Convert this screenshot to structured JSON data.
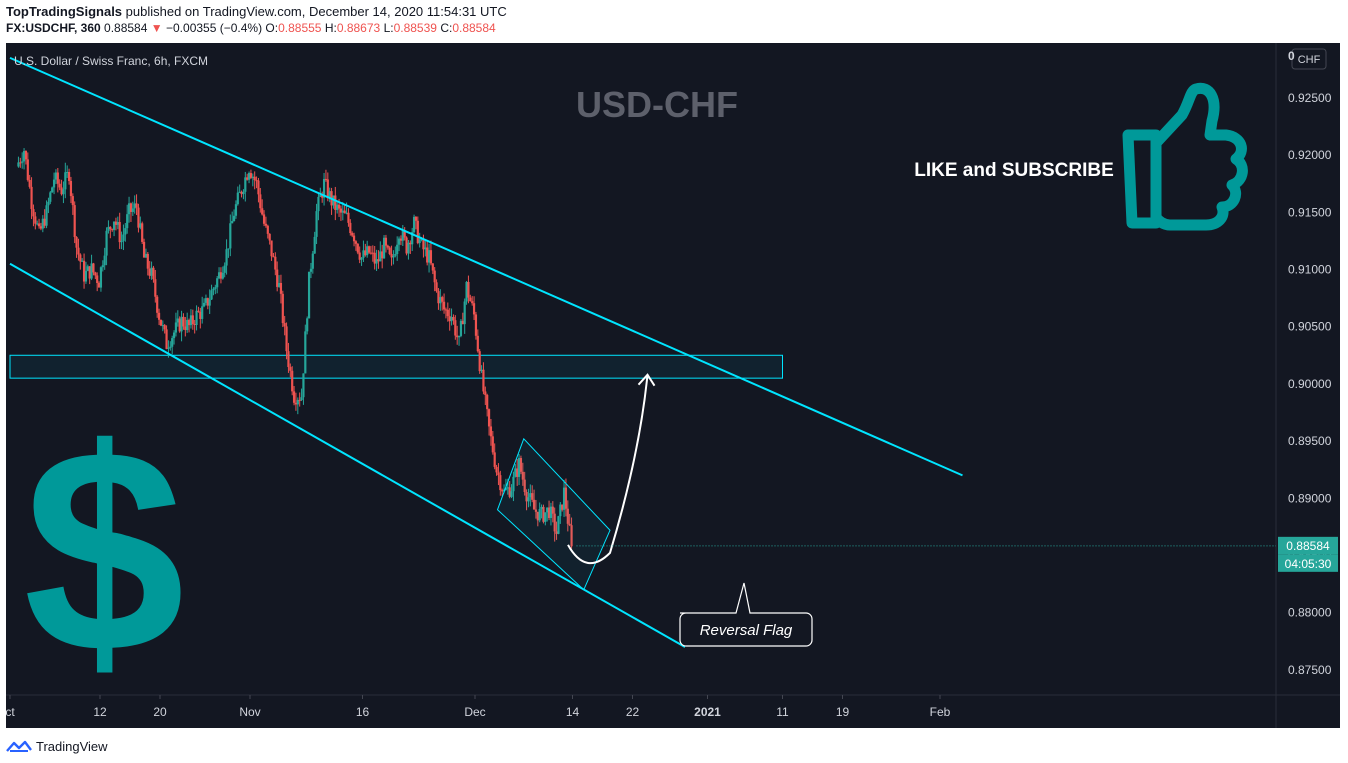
{
  "header": {
    "author": "TopTradingSignals",
    "published_text": " published on TradingView.com, December 14, 2020 11:54:31 UTC",
    "symbol": "FX:USDCHF, 360",
    "last": "0.88584",
    "arrow": "▼",
    "change": "−0.00355 (−0.4%)",
    "o_label": "O:",
    "o_value": "0.88555",
    "h_label": "H:",
    "h_value": "0.88673",
    "l_label": "L:",
    "l_value": "0.88539",
    "c_label": "C:",
    "c_value": "0.88584"
  },
  "chart_legend": "U.S. Dollar / Swiss Franc, 6h, FXCM",
  "watermark": "USD-CHF",
  "like_text": "LIKE and SUBSCRIBE",
  "currency_badge": "CHF",
  "top_axis_label": "0",
  "price_label": "0.88584",
  "countdown_label": "04:05:30",
  "reversal_label": "Reversal Flag",
  "footer_brand": "TradingView",
  "colors": {
    "background": "#131722",
    "up": "#26a69a",
    "down": "#ef5350",
    "trendline": "#00e5ff",
    "teal_art": "#009999",
    "axis_text": "#d1d4dc",
    "last_price_bg": "#26a69a"
  },
  "chart_data": {
    "type": "candlestick",
    "title": "U.S. Dollar / Swiss Franc, 6h, FXCM",
    "ylim": [
      0.8728,
      0.9298
    ],
    "y_ticks": [
      "0.92500",
      "0.92000",
      "0.91500",
      "0.91000",
      "0.90500",
      "0.90000",
      "0.89500",
      "0.89000",
      "0.88500",
      "0.88000",
      "0.87500"
    ],
    "x_ticks": [
      {
        "label": "ct",
        "day": -1
      },
      {
        "label": "12",
        "day": 11
      },
      {
        "label": "20",
        "day": 19
      },
      {
        "label": "Nov",
        "day": 31
      },
      {
        "label": "16",
        "day": 46
      },
      {
        "label": "Dec",
        "day": 61
      },
      {
        "label": "14",
        "day": 74
      },
      {
        "label": "22",
        "day": 82
      },
      {
        "label": "2021",
        "day": 92
      },
      {
        "label": "11",
        "day": 102
      },
      {
        "label": "19",
        "day": 110
      },
      {
        "label": "Feb",
        "day": 123
      }
    ],
    "anchors": [
      {
        "day": 0,
        "price": 0.919
      },
      {
        "day": 1,
        "price": 0.9205
      },
      {
        "day": 2,
        "price": 0.916
      },
      {
        "day": 3,
        "price": 0.913
      },
      {
        "day": 4,
        "price": 0.915
      },
      {
        "day": 5,
        "price": 0.918
      },
      {
        "day": 6,
        "price": 0.917
      },
      {
        "day": 7,
        "price": 0.9185
      },
      {
        "day": 8,
        "price": 0.912
      },
      {
        "day": 9,
        "price": 0.9095
      },
      {
        "day": 10,
        "price": 0.91
      },
      {
        "day": 11,
        "price": 0.909
      },
      {
        "day": 12,
        "price": 0.913
      },
      {
        "day": 13,
        "price": 0.9145
      },
      {
        "day": 14,
        "price": 0.9125
      },
      {
        "day": 15,
        "price": 0.915
      },
      {
        "day": 16,
        "price": 0.9155
      },
      {
        "day": 17,
        "price": 0.911
      },
      {
        "day": 18,
        "price": 0.9095
      },
      {
        "day": 19,
        "price": 0.906
      },
      {
        "day": 20,
        "price": 0.9035
      },
      {
        "day": 21,
        "price": 0.9045
      },
      {
        "day": 22,
        "price": 0.9055
      },
      {
        "day": 23,
        "price": 0.905
      },
      {
        "day": 24,
        "price": 0.906
      },
      {
        "day": 25,
        "price": 0.9065
      },
      {
        "day": 26,
        "price": 0.908
      },
      {
        "day": 27,
        "price": 0.9095
      },
      {
        "day": 28,
        "price": 0.9115
      },
      {
        "day": 29,
        "price": 0.915
      },
      {
        "day": 30,
        "price": 0.917
      },
      {
        "day": 31,
        "price": 0.919
      },
      {
        "day": 32,
        "price": 0.9175
      },
      {
        "day": 33,
        "price": 0.914
      },
      {
        "day": 34,
        "price": 0.9115
      },
      {
        "day": 35,
        "price": 0.9085
      },
      {
        "day": 36,
        "price": 0.903
      },
      {
        "day": 37,
        "price": 0.899
      },
      {
        "day": 38,
        "price": 0.899
      },
      {
        "day": 39,
        "price": 0.909
      },
      {
        "day": 40,
        "price": 0.915
      },
      {
        "day": 41,
        "price": 0.9175
      },
      {
        "day": 42,
        "price": 0.916
      },
      {
        "day": 43,
        "price": 0.915
      },
      {
        "day": 44,
        "price": 0.9145
      },
      {
        "day": 45,
        "price": 0.913
      },
      {
        "day": 46,
        "price": 0.911
      },
      {
        "day": 47,
        "price": 0.9115
      },
      {
        "day": 48,
        "price": 0.9105
      },
      {
        "day": 49,
        "price": 0.912
      },
      {
        "day": 50,
        "price": 0.9105
      },
      {
        "day": 51,
        "price": 0.9135
      },
      {
        "day": 52,
        "price": 0.912
      },
      {
        "day": 53,
        "price": 0.914
      },
      {
        "day": 54,
        "price": 0.912
      },
      {
        "day": 55,
        "price": 0.911
      },
      {
        "day": 56,
        "price": 0.908
      },
      {
        "day": 57,
        "price": 0.9065
      },
      {
        "day": 58,
        "price": 0.906
      },
      {
        "day": 59,
        "price": 0.9035
      },
      {
        "day": 60,
        "price": 0.9085
      },
      {
        "day": 61,
        "price": 0.906
      },
      {
        "day": 62,
        "price": 0.9005
      },
      {
        "day": 63,
        "price": 0.896
      },
      {
        "day": 64,
        "price": 0.8925
      },
      {
        "day": 65,
        "price": 0.8905
      },
      {
        "day": 66,
        "price": 0.891
      },
      {
        "day": 67,
        "price": 0.893
      },
      {
        "day": 68,
        "price": 0.8905
      },
      {
        "day": 69,
        "price": 0.889
      },
      {
        "day": 70,
        "price": 0.8885
      },
      {
        "day": 71,
        "price": 0.889
      },
      {
        "day": 72,
        "price": 0.887
      },
      {
        "day": 73,
        "price": 0.8905
      },
      {
        "day": 74,
        "price": 0.8858
      }
    ],
    "annotations": {
      "upper_channel": [
        {
          "day": -1,
          "price": 0.9285
        },
        {
          "day": 126,
          "price": 0.892
        }
      ],
      "lower_channel": [
        {
          "day": -1,
          "price": 0.9105
        },
        {
          "day": 89,
          "price": 0.877
        }
      ],
      "resistance_zone": {
        "day_start": -1,
        "day_end": 102,
        "price_top": 0.9025,
        "price_bottom": 0.9005
      },
      "flag_box": [
        {
          "day": 64,
          "price": 0.889
        },
        {
          "day": 67.5,
          "price": 0.8952
        },
        {
          "day": 79,
          "price": 0.8872
        },
        {
          "day": 75.5,
          "price": 0.882
        }
      ],
      "projection_arrow": {
        "from": {
          "day": 75,
          "price": 0.884
        },
        "to": {
          "day": 84,
          "price": 0.9008
        }
      }
    }
  }
}
